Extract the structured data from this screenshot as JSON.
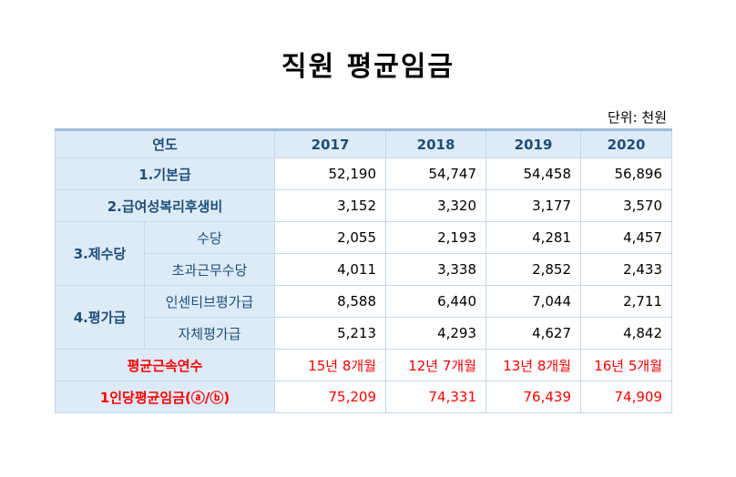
{
  "title": "직원 평균임금",
  "unit": "단위: 천원",
  "header": {
    "label": "연도",
    "years": [
      "2017",
      "2018",
      "2019",
      "2020"
    ]
  },
  "rows": {
    "base": {
      "label": "1.기본급",
      "values": [
        "52,190",
        "54,747",
        "54,458",
        "56,896"
      ]
    },
    "welfare": {
      "label": "2.급여성복리후생비",
      "values": [
        "3,152",
        "3,320",
        "3,177",
        "3,570"
      ]
    },
    "allowance": {
      "label": "3.제수당",
      "sub1": {
        "label": "수당",
        "values": [
          "2,055",
          "2,193",
          "4,281",
          "4,457"
        ]
      },
      "sub2": {
        "label": "초과근무수당",
        "values": [
          "4,011",
          "3,338",
          "2,852",
          "2,433"
        ]
      }
    },
    "evaluation": {
      "label": "4.평가급",
      "sub1": {
        "label": "인센티브평가급",
        "values": [
          "8,588",
          "6,440",
          "7,044",
          "2,711"
        ]
      },
      "sub2": {
        "label": "자체평가급",
        "values": [
          "5,213",
          "4,293",
          "4,627",
          "4,842"
        ]
      }
    },
    "tenure": {
      "label": "평균근속연수",
      "values": [
        "15년 8개월",
        "12년 7개월",
        "13년 8개월",
        "16년 5개월"
      ]
    },
    "avg": {
      "label": "1인당평균임금(ⓐ/ⓑ)",
      "values": [
        "75,209",
        "74,331",
        "76,439",
        "74,909"
      ]
    }
  },
  "colors": {
    "header_bg": "#ddebf7",
    "label_text": "#1f4e79",
    "highlight": "#ff0000",
    "border": "#c5d6ea"
  }
}
